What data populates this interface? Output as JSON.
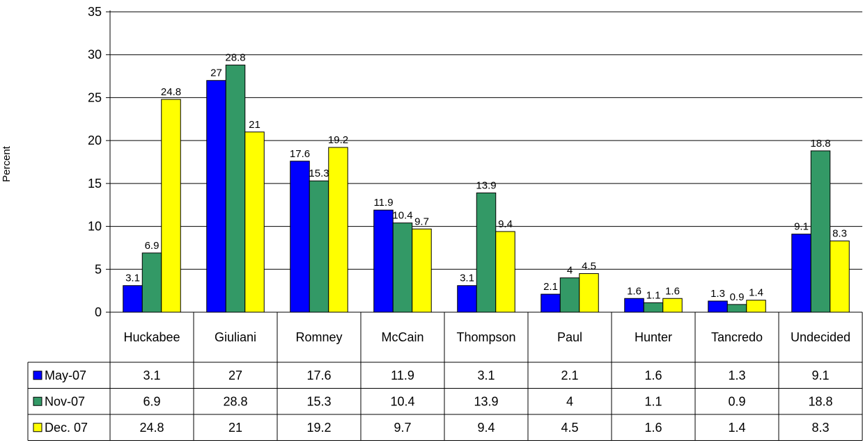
{
  "chart_data": {
    "type": "bar",
    "title": "",
    "xlabel": "",
    "ylabel": "Percent",
    "ylim": [
      0,
      35
    ],
    "yticks": [
      0,
      5,
      10,
      15,
      20,
      25,
      30,
      35
    ],
    "grid": true,
    "legend": "data-table",
    "categories": [
      "Huckabee",
      "Giuliani",
      "Romney",
      "McCain",
      "Thompson",
      "Paul",
      "Hunter",
      "Tancredo",
      "Undecided"
    ],
    "series": [
      {
        "name": "May-07",
        "color": "#0000FF",
        "values": [
          3.1,
          27,
          17.6,
          11.9,
          3.1,
          2.1,
          1.6,
          1.3,
          9.1
        ]
      },
      {
        "name": "Nov-07",
        "color": "#339966",
        "values": [
          6.9,
          28.8,
          15.3,
          10.4,
          13.9,
          4,
          1.1,
          0.9,
          18.8
        ]
      },
      {
        "name": "Dec. 07",
        "color": "#FFFF00",
        "values": [
          24.8,
          21,
          19.2,
          9.7,
          9.4,
          4.5,
          1.6,
          1.4,
          8.3
        ]
      }
    ]
  }
}
